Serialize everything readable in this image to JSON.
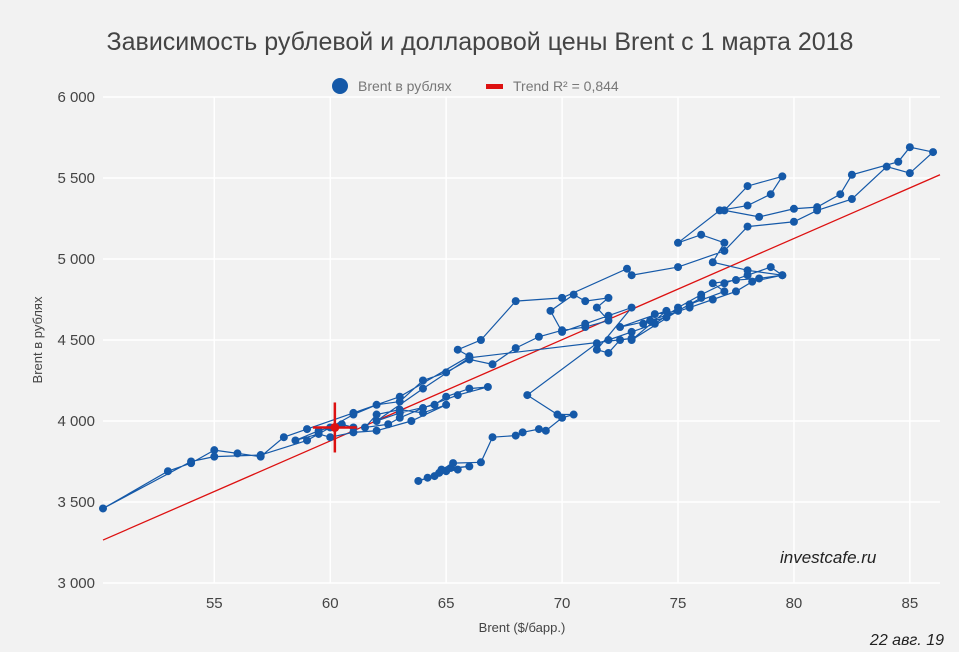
{
  "chart_data": {
    "type": "scatter",
    "title": "Зависимость рублевой и долларовой цены Brent с 1 марта 2018",
    "xlabel": "Brent ($/барр.)",
    "ylabel": "Brent в рублях",
    "xlim": [
      50.2,
      86.3
    ],
    "ylim": [
      3000,
      6000
    ],
    "xticks": [
      55,
      60,
      65,
      70,
      75,
      80,
      85
    ],
    "yticks": [
      3000,
      3500,
      4000,
      4500,
      5000,
      5500,
      6000
    ],
    "ytick_labels": [
      "3 000",
      "3 500",
      "4 000",
      "4 500",
      "5 000",
      "5 500",
      "6 000"
    ],
    "grid": true,
    "legend_position": "top",
    "series": [
      {
        "name": "Brent в рублях",
        "color": "#1559a8",
        "connected": true,
        "points": [
          [
            64.2,
            3650
          ],
          [
            63.8,
            3630
          ],
          [
            64.5,
            3660
          ],
          [
            65.0,
            3690
          ],
          [
            64.7,
            3680
          ],
          [
            65.5,
            3700
          ],
          [
            65.2,
            3710
          ],
          [
            66.0,
            3720
          ],
          [
            64.8,
            3700
          ],
          [
            65.3,
            3740
          ],
          [
            66.5,
            3745
          ],
          [
            67.0,
            3900
          ],
          [
            68.0,
            3910
          ],
          [
            68.3,
            3930
          ],
          [
            69.0,
            3950
          ],
          [
            69.3,
            3940
          ],
          [
            70.0,
            4020
          ],
          [
            70.5,
            4040
          ],
          [
            69.8,
            4040
          ],
          [
            68.5,
            4160
          ],
          [
            71.5,
            4480
          ],
          [
            72.0,
            4500
          ],
          [
            73.0,
            4550
          ],
          [
            74.0,
            4600
          ],
          [
            75.0,
            4700
          ],
          [
            76.0,
            4780
          ],
          [
            77.0,
            4850
          ],
          [
            78.0,
            4900
          ],
          [
            79.0,
            4950
          ],
          [
            79.5,
            4900
          ],
          [
            78.5,
            4880
          ],
          [
            77.5,
            4870
          ],
          [
            76.5,
            4850
          ],
          [
            77.0,
            4800
          ],
          [
            75.5,
            4720
          ],
          [
            76.0,
            4760
          ],
          [
            74.5,
            4640
          ],
          [
            73.5,
            4600
          ],
          [
            74.0,
            4660
          ],
          [
            75.0,
            4680
          ],
          [
            73.0,
            4500
          ],
          [
            74.5,
            4680
          ],
          [
            72.5,
            4580
          ],
          [
            73.8,
            4620
          ],
          [
            75.5,
            4700
          ],
          [
            76.5,
            4750
          ],
          [
            77.5,
            4800
          ],
          [
            78.2,
            4860
          ],
          [
            79.5,
            4900
          ],
          [
            78.0,
            4930
          ],
          [
            76.5,
            4980
          ],
          [
            77.0,
            5100
          ],
          [
            76.0,
            5150
          ],
          [
            75.0,
            5100
          ],
          [
            76.8,
            5300
          ],
          [
            78.0,
            5330
          ],
          [
            79.0,
            5400
          ],
          [
            79.5,
            5510
          ],
          [
            78.0,
            5450
          ],
          [
            77.0,
            5300
          ],
          [
            78.5,
            5260
          ],
          [
            80.0,
            5310
          ],
          [
            81.0,
            5320
          ],
          [
            82.0,
            5400
          ],
          [
            82.5,
            5520
          ],
          [
            84.5,
            5600
          ],
          [
            85.0,
            5690
          ],
          [
            86.0,
            5660
          ],
          [
            85.0,
            5530
          ],
          [
            84.0,
            5570
          ],
          [
            82.5,
            5370
          ],
          [
            81.0,
            5300
          ],
          [
            80.0,
            5230
          ],
          [
            78.0,
            5200
          ],
          [
            77.0,
            5050
          ],
          [
            75.0,
            4950
          ],
          [
            73.0,
            4900
          ],
          [
            72.8,
            4940
          ],
          [
            70.0,
            4760
          ],
          [
            68.0,
            4740
          ],
          [
            66.5,
            4500
          ],
          [
            65.5,
            4440
          ],
          [
            66.0,
            4400
          ],
          [
            63.0,
            4150
          ],
          [
            61.0,
            4050
          ],
          [
            59.0,
            3950
          ],
          [
            58.0,
            3900
          ],
          [
            57.0,
            3780
          ],
          [
            56.0,
            3800
          ],
          [
            55.0,
            3820
          ],
          [
            54.0,
            3740
          ],
          [
            53.0,
            3690
          ],
          [
            50.2,
            3460
          ],
          [
            54.0,
            3750
          ],
          [
            55.0,
            3780
          ],
          [
            57.0,
            3790
          ],
          [
            59.0,
            3880
          ],
          [
            60.0,
            3960
          ],
          [
            61.0,
            4040
          ],
          [
            62.0,
            4100
          ],
          [
            63.0,
            4120
          ],
          [
            64.0,
            4250
          ],
          [
            65.0,
            4300
          ],
          [
            66.0,
            4380
          ],
          [
            67.0,
            4350
          ],
          [
            68.0,
            4450
          ],
          [
            69.0,
            4520
          ],
          [
            70.0,
            4560
          ],
          [
            71.0,
            4580
          ],
          [
            72.0,
            4620
          ],
          [
            71.5,
            4700
          ],
          [
            72.0,
            4760
          ],
          [
            71.0,
            4740
          ],
          [
            70.5,
            4780
          ],
          [
            69.5,
            4680
          ],
          [
            70.0,
            4550
          ],
          [
            71.0,
            4600
          ],
          [
            72.0,
            4650
          ],
          [
            73.0,
            4700
          ],
          [
            71.5,
            4440
          ],
          [
            72.0,
            4420
          ],
          [
            72.5,
            4500
          ],
          [
            73.0,
            4510
          ],
          [
            66.0,
            4390
          ],
          [
            64.0,
            4200
          ],
          [
            62.0,
            4000
          ],
          [
            63.0,
            4050
          ],
          [
            64.5,
            4100
          ],
          [
            65.0,
            4150
          ],
          [
            66.0,
            4200
          ],
          [
            66.8,
            4210
          ],
          [
            65.5,
            4160
          ],
          [
            64.0,
            4080
          ],
          [
            63.0,
            4020
          ],
          [
            62.5,
            3980
          ],
          [
            61.5,
            3960
          ],
          [
            62.0,
            4040
          ],
          [
            63.0,
            4070
          ],
          [
            64.0,
            4050
          ],
          [
            65.0,
            4100
          ],
          [
            63.5,
            4000
          ],
          [
            62.0,
            3940
          ],
          [
            61.0,
            3930
          ],
          [
            60.0,
            3900
          ],
          [
            59.5,
            3920
          ],
          [
            58.5,
            3880
          ],
          [
            59.5,
            3940
          ],
          [
            60.5,
            3980
          ],
          [
            61.0,
            3960
          ],
          [
            60.2,
            3960
          ]
        ]
      },
      {
        "name": "Trend R² = 0,844",
        "color": "#dd1111",
        "type": "line",
        "points": [
          [
            50.2,
            3265
          ],
          [
            86.3,
            5520
          ]
        ]
      }
    ],
    "last_point_marker": {
      "x": 60.2,
      "y": 3960,
      "color": "#dd1111"
    }
  },
  "watermark": "investcafe.ru",
  "date": "22 авг. 19"
}
